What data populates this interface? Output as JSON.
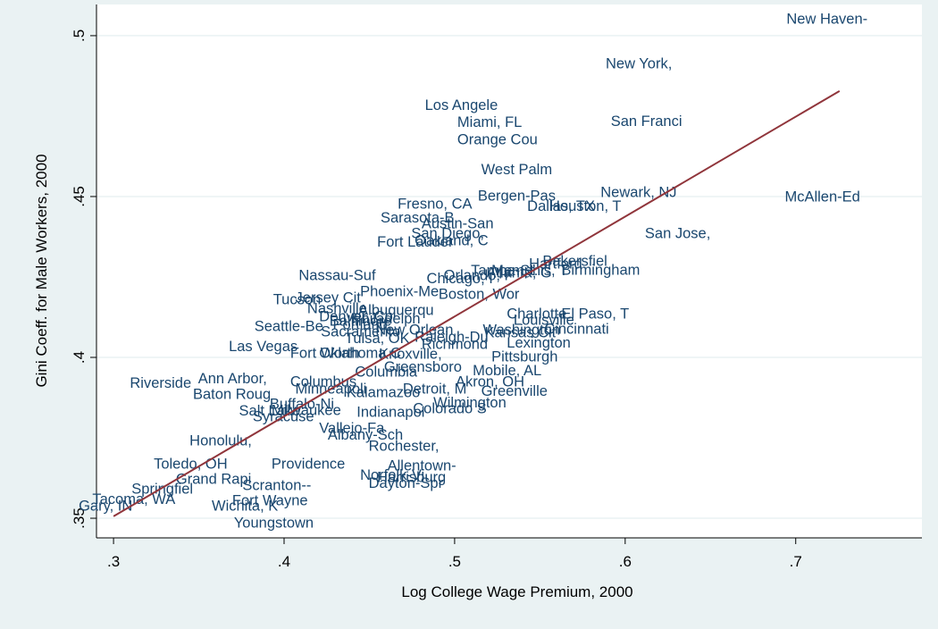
{
  "chart_data": {
    "type": "scatter",
    "x_label": "Log College Wage Premium, 2000",
    "y_label": "Gini Coeff. for Male Workers, 2000",
    "xlim": [
      0.29,
      0.774
    ],
    "ylim": [
      0.3439,
      0.5097
    ],
    "xticks": [
      {
        "value": 0.3,
        "label": ".3"
      },
      {
        "value": 0.4,
        "label": ".4"
      },
      {
        "value": 0.5,
        "label": ".5"
      },
      {
        "value": 0.6,
        "label": ".6"
      },
      {
        "value": 0.7,
        "label": ".7"
      }
    ],
    "yticks": [
      {
        "value": 0.35,
        "label": ".35"
      },
      {
        "value": 0.4,
        "label": ".4"
      },
      {
        "value": 0.45,
        "label": ".45"
      },
      {
        "value": 0.5,
        "label": ".5"
      }
    ],
    "grid": true,
    "label_color": "#1a476f",
    "point_labels": [
      "New Haven-",
      "New York,",
      "Los Angele",
      "Miami, FL",
      "San Franci",
      "Orange Cou",
      "West Palm",
      "Bergen-Pas",
      "Newark, NJ",
      "McAllen-Ed",
      "Fresno, CA",
      "Dallas, TX",
      "Houston, T",
      "Sarasota-B",
      "Austin-San",
      "San Diego,",
      "San Jose,",
      "Fort Lauder",
      "Oakland, C",
      "Nassau-Suf",
      "Orlando, F",
      "Tampa-St.",
      "Atlanta, G",
      "Memphis, T",
      "Hartford",
      "Bakersfiel",
      "Birmingham",
      "Chicago, I",
      "Phoenix-Me",
      "Boston, Wor",
      "Tucson",
      "Jersey Cit",
      "Nashville",
      "Albuquerqu",
      "Seattle-Be",
      "Charlotte",
      "El Paso, T",
      "Denver, Co",
      "Baltimore",
      "Philadelph",
      "Portland",
      "Sacramento",
      "New Orlean",
      "Washington",
      "Louisville",
      "Cincinnati",
      "Kansas Cit",
      "Tulsa, OK",
      "Oklahoma C",
      "Richmond",
      "Raleigh-Du",
      "Lexington",
      "Pittsburgh",
      "Knoxville,",
      "Las Vegas",
      "Fort Worth",
      "Greensboro",
      "Mobile, AL",
      "Columbia",
      "Akron, OH",
      "Ann Arbor,",
      "Riverside",
      "Columbus",
      "Baton Roug",
      "Minneapoli",
      "Kalamazoo",
      "Detroit, M",
      "Greenville",
      "Buffalo-Ni",
      "Wilmington",
      "Salt Lake",
      "Milwaukee",
      "Colorado S",
      "Syracuse",
      "Indianapol",
      "Vallejo-Fa",
      "Albany-Sch",
      "Honolulu,",
      "Rochester,",
      "Toledo, OH",
      "Providence",
      "Allentown-",
      "Norfolk-Vi",
      "Harrisburg",
      "Dayton-Spr",
      "Grand Rapi",
      "Scranton--",
      "Springfiel",
      "Tacoma, WA",
      "Fort Wayne",
      "Gary, IN",
      "Wichita, K",
      "Youngstown"
    ],
    "x": [
      0.693,
      0.587,
      0.481,
      0.5,
      0.59,
      0.5,
      0.514,
      0.512,
      0.584,
      0.692,
      0.465,
      0.541,
      0.554,
      0.455,
      0.479,
      0.473,
      0.61,
      0.453,
      0.475,
      0.407,
      0.492,
      0.508,
      0.517,
      0.52,
      0.542,
      0.55,
      0.561,
      0.482,
      0.443,
      0.489,
      0.392,
      0.405,
      0.412,
      0.442,
      0.381,
      0.529,
      0.561,
      0.419,
      0.425,
      0.438,
      0.427,
      0.42,
      0.452,
      0.515,
      0.533,
      0.551,
      0.516,
      0.434,
      0.419,
      0.479,
      0.475,
      0.529,
      0.52,
      0.454,
      0.366,
      0.402,
      0.457,
      0.509,
      0.44,
      0.499,
      0.348,
      0.308,
      0.402,
      0.345,
      0.405,
      0.435,
      0.468,
      0.514,
      0.39,
      0.486,
      0.372,
      0.391,
      0.474,
      0.38,
      0.441,
      0.419,
      0.424,
      0.343,
      0.448,
      0.322,
      0.391,
      0.459,
      0.443,
      0.453,
      0.448,
      0.335,
      0.374,
      0.309,
      0.286,
      0.368,
      0.278,
      0.356,
      0.369
    ],
    "values": [
      0.505,
      0.4911,
      0.4781,
      0.4728,
      0.4731,
      0.4675,
      0.4581,
      0.45,
      0.4511,
      0.4497,
      0.4475,
      0.4467,
      0.4467,
      0.4431,
      0.4414,
      0.4383,
      0.4383,
      0.4356,
      0.4361,
      0.4253,
      0.4253,
      0.4267,
      0.4261,
      0.4267,
      0.4289,
      0.4297,
      0.4269,
      0.4242,
      0.4203,
      0.4194,
      0.4178,
      0.4183,
      0.415,
      0.4144,
      0.4094,
      0.4133,
      0.4133,
      0.4125,
      0.4111,
      0.4117,
      0.41,
      0.4078,
      0.4083,
      0.4083,
      0.4114,
      0.4086,
      0.4075,
      0.4056,
      0.4011,
      0.4039,
      0.4061,
      0.4042,
      0.4,
      0.4008,
      0.4031,
      0.4011,
      0.3967,
      0.3956,
      0.3953,
      0.3922,
      0.3931,
      0.3917,
      0.3922,
      0.3883,
      0.39,
      0.3889,
      0.39,
      0.3892,
      0.3853,
      0.3856,
      0.3831,
      0.3833,
      0.3839,
      0.3814,
      0.3828,
      0.3778,
      0.3756,
      0.3739,
      0.3722,
      0.3667,
      0.3667,
      0.3661,
      0.3631,
      0.3625,
      0.3606,
      0.3619,
      0.36,
      0.3589,
      0.3556,
      0.3553,
      0.3536,
      0.3536,
      0.3483
    ],
    "fit": {
      "type": "line",
      "color": "#90353b",
      "x": [
        0.3,
        0.7257
      ],
      "values": [
        0.3506,
        0.4828
      ]
    }
  }
}
